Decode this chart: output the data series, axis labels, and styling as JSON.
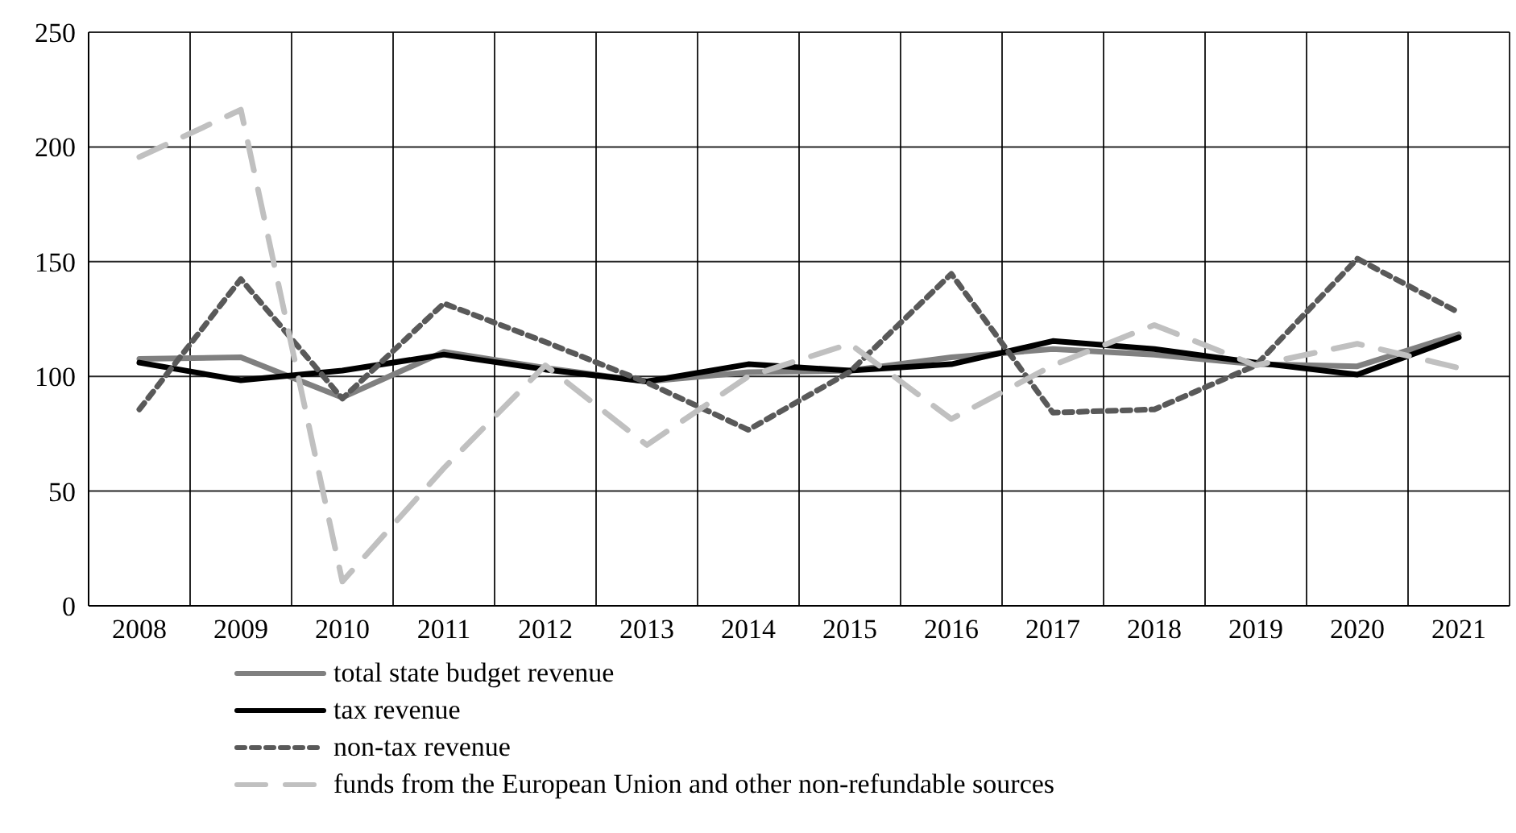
{
  "chart_data": {
    "type": "line",
    "categories": [
      "2008",
      "2009",
      "2010",
      "2011",
      "2012",
      "2013",
      "2014",
      "2015",
      "2016",
      "2017",
      "2018",
      "2019",
      "2020",
      "2021"
    ],
    "series": [
      {
        "name": "total state budget revenue",
        "color": "#808080",
        "line_style": "solid",
        "values": [
          107.6,
          108.3,
          90.8,
          110.7,
          103.7,
          97.8,
          101.8,
          102.5,
          108.3,
          111.9,
          109.5,
          105.3,
          104.4,
          118.4
        ]
      },
      {
        "name": "tax revenue",
        "color": "#000000",
        "line_style": "solid",
        "values": [
          106,
          98.3,
          102.5,
          109.5,
          103,
          97.8,
          105.3,
          102.5,
          105.3,
          115.4,
          111.9,
          106,
          100.8,
          117
        ]
      },
      {
        "name": "non-tax revenue",
        "color": "#595959",
        "line_style": "dotted",
        "values": [
          85.6,
          142.4,
          90.3,
          131.8,
          115,
          97.3,
          76.7,
          102,
          144.7,
          84.2,
          85.6,
          104.8,
          151.3,
          127.8
        ]
      },
      {
        "name": "funds from the European Union and other non-refundable sources",
        "color": "#c0c0c0",
        "line_style": "dashed",
        "values": [
          195.6,
          216.2,
          10.6,
          60,
          104.8,
          70.1,
          100,
          114.2,
          81.4,
          104.8,
          122.4,
          104.8,
          114.2,
          103.7
        ]
      }
    ],
    "ylim": [
      0,
      250
    ],
    "yticks": [
      0,
      50,
      100,
      150,
      200,
      250
    ],
    "grid": true,
    "legend": "bottom",
    "marker": "none"
  }
}
